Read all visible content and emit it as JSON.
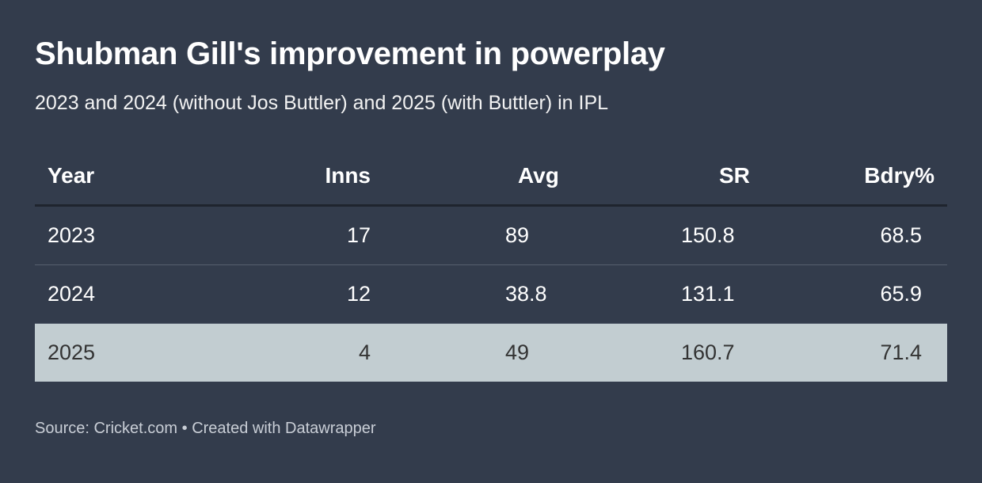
{
  "title": "Shubman Gill's improvement in powerplay",
  "subtitle": "2023 and 2024 (without Jos Buttler) and 2025 (with Buttler) in IPL",
  "footer": {
    "source": "Source: Cricket.com",
    "separator": "•",
    "credit": "Created with Datawrapper"
  },
  "colors": {
    "background": "#333c4c",
    "highlight_row": "#c2cdd1",
    "header_rule": "#1f242e"
  },
  "chart_data": {
    "type": "table",
    "columns": [
      "Year",
      "Inns",
      "Avg",
      "SR",
      "Bdry%"
    ],
    "rows": [
      {
        "year": "2023",
        "inns": "17",
        "avg": "89",
        "sr": "150.8",
        "bdry": "68.5",
        "highlight": false
      },
      {
        "year": "2024",
        "inns": "12",
        "avg": "38.8",
        "sr": "131.1",
        "bdry": "65.9",
        "highlight": false
      },
      {
        "year": "2025",
        "inns": "4",
        "avg": "49",
        "sr": "160.7",
        "bdry": "71.4",
        "highlight": true
      }
    ]
  }
}
